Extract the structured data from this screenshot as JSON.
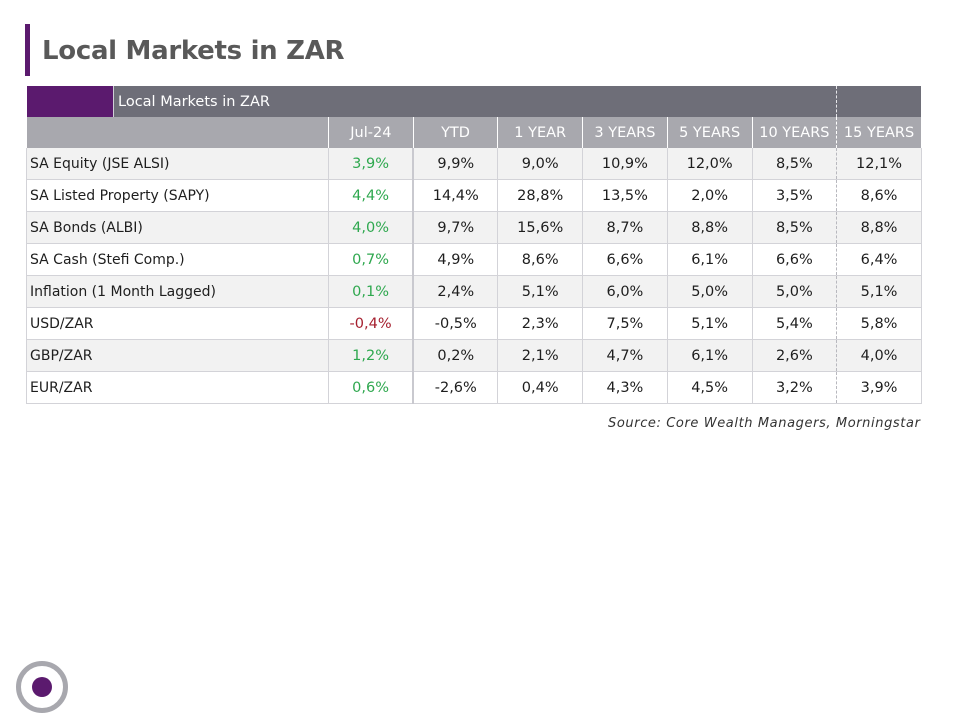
{
  "page": {
    "title": "Local Markets in ZAR",
    "source": "Source: Core Wealth Managers, Morningstar"
  },
  "table": {
    "banner_label": "Local Markets in ZAR",
    "headers": [
      "",
      "Jul-24",
      "YTD",
      "1 YEAR",
      "3 YEARS",
      "5 YEARS",
      "10 YEARS",
      "15 YEARS"
    ],
    "rows": [
      {
        "name": "SA Equity (JSE ALSI)",
        "month": "3,9%",
        "month_sign": "pos",
        "values": [
          "9,9%",
          "9,0%",
          "10,9%",
          "12,0%",
          "8,5%",
          "12,1%"
        ]
      },
      {
        "name": "SA Listed Property (SAPY)",
        "month": "4,4%",
        "month_sign": "pos",
        "values": [
          "14,4%",
          "28,8%",
          "13,5%",
          "2,0%",
          "3,5%",
          "8,6%"
        ]
      },
      {
        "name": "SA Bonds (ALBI)",
        "month": "4,0%",
        "month_sign": "pos",
        "values": [
          "9,7%",
          "15,6%",
          "8,7%",
          "8,8%",
          "8,5%",
          "8,8%"
        ]
      },
      {
        "name": "SA Cash (Stefi Comp.)",
        "month": "0,7%",
        "month_sign": "pos",
        "values": [
          "4,9%",
          "8,6%",
          "6,6%",
          "6,1%",
          "6,6%",
          "6,4%"
        ]
      },
      {
        "name": "Inflation (1 Month Lagged)",
        "month": "0,1%",
        "month_sign": "pos",
        "values": [
          "2,4%",
          "5,1%",
          "6,0%",
          "5,0%",
          "5,0%",
          "5,1%"
        ]
      },
      {
        "name": "USD/ZAR",
        "month": "-0,4%",
        "month_sign": "neg",
        "values": [
          "-0,5%",
          "2,3%",
          "7,5%",
          "5,1%",
          "5,4%",
          "5,8%"
        ]
      },
      {
        "name": "GBP/ZAR",
        "month": "1,2%",
        "month_sign": "pos",
        "values": [
          "0,2%",
          "2,1%",
          "4,7%",
          "6,1%",
          "2,6%",
          "4,0%"
        ]
      },
      {
        "name": "EUR/ZAR",
        "month": "0,6%",
        "month_sign": "pos",
        "values": [
          "-2,6%",
          "0,4%",
          "4,3%",
          "4,5%",
          "3,2%",
          "3,9%"
        ]
      }
    ]
  },
  "colors": {
    "accent": "#5b1a6e",
    "banner": "#6e6e78",
    "header": "#a8a8ae",
    "positive": "#2fa84f",
    "negative": "#a51f2e"
  },
  "icons": {
    "logo": "circle-logo-icon"
  }
}
